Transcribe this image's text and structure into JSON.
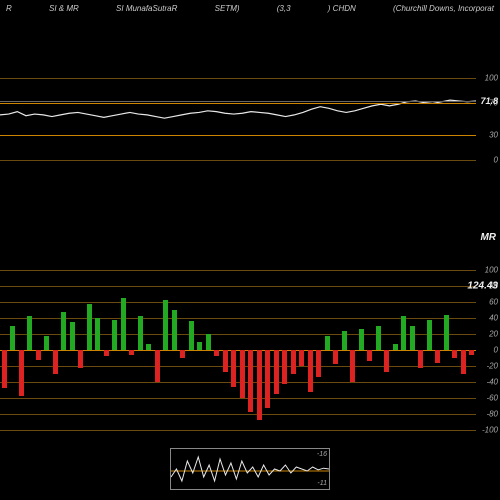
{
  "header": {
    "left1": "R",
    "left2": "SI & MR",
    "left3": "SI MunafaSutraR",
    "setm": "SETM)",
    "mid": "(3,3",
    "sym": ") CHDN",
    "right": "(Churchill Downs, Incorporat"
  },
  "colors": {
    "bg": "#000000",
    "orange": "#cc8400",
    "orange_dim": "#6b4a10",
    "white": "#e8e8e8",
    "green": "#22aa22",
    "red": "#dd2222",
    "grid": "#555555"
  },
  "top_panel": {
    "ymin": 0,
    "ymax": 100,
    "gridlines": [
      0,
      30,
      70,
      100
    ],
    "current_value": 71.8,
    "line": [
      55,
      56,
      59,
      54,
      56,
      55,
      53,
      55,
      57,
      58,
      56,
      54,
      52,
      54,
      56,
      58,
      56,
      55,
      53,
      51,
      53,
      55,
      57,
      58,
      60,
      59,
      57,
      56,
      57,
      59,
      58,
      57,
      55,
      53,
      55,
      58,
      62,
      65,
      63,
      60,
      58,
      60,
      63,
      66,
      68,
      66,
      68,
      71,
      72,
      70,
      69,
      71,
      73,
      72,
      71,
      72
    ]
  },
  "mid_label": "MR",
  "bar_panel": {
    "ymin": -100,
    "ymax": 100,
    "gridlines": [
      -100,
      -80,
      -60,
      -40,
      -20,
      0,
      20,
      40,
      60,
      80,
      100
    ],
    "current_value_label": "124.43",
    "highlight": 80,
    "bars": [
      -48,
      30,
      -58,
      42,
      -12,
      18,
      -30,
      48,
      35,
      -22,
      58,
      40,
      -8,
      38,
      65,
      -6,
      42,
      8,
      -40,
      62,
      50,
      -10,
      36,
      10,
      20,
      -8,
      -28,
      -46,
      -60,
      -78,
      -88,
      -72,
      -55,
      -42,
      -30,
      -20,
      -52,
      -34,
      18,
      -18,
      24,
      -40,
      26,
      -14,
      30,
      -28,
      8,
      42,
      30,
      -22,
      38,
      -16,
      44,
      -10,
      -30,
      -6
    ]
  },
  "mini_panel": {
    "top_val": -16,
    "bot_val": -11,
    "line": [
      0.3,
      0.5,
      0.2,
      0.7,
      0.4,
      0.8,
      0.3,
      0.6,
      0.2,
      0.75,
      0.35,
      0.65,
      0.25,
      0.7,
      0.4,
      0.55,
      0.3,
      0.6,
      0.35,
      0.5,
      0.45,
      0.6,
      0.4,
      0.55,
      0.5,
      0.45,
      0.55,
      0.48,
      0.52,
      0.5
    ]
  }
}
